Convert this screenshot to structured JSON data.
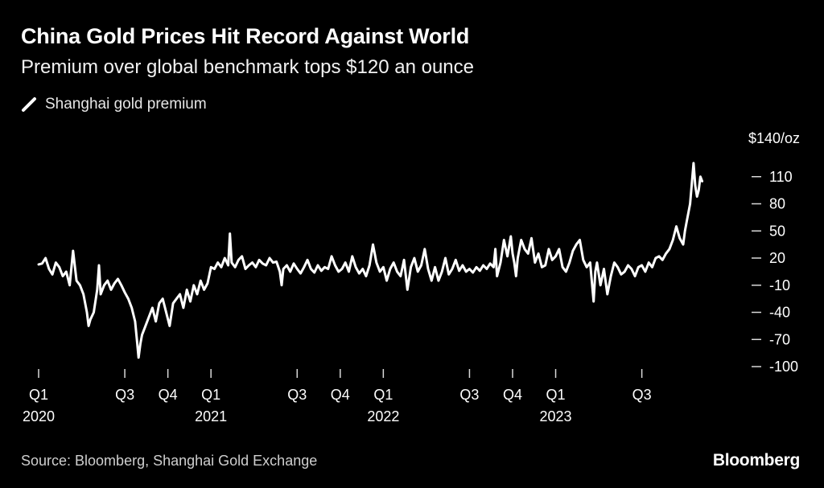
{
  "header": {
    "title": "China Gold Prices Hit Record Against World",
    "subtitle": "Premium over global benchmark tops $120 an ounce"
  },
  "legend": {
    "label": "Shanghai gold premium",
    "icon": "line-swatch-icon"
  },
  "footer": {
    "source": "Source: Bloomberg, Shanghai Gold Exchange",
    "brand": "Bloomberg"
  },
  "colors": {
    "background": "#000000",
    "line": "#ffffff",
    "text": "#ffffff",
    "muted": "#cfcfcf"
  },
  "chart_data": {
    "type": "line",
    "title": "China Gold Prices Hit Record Against World",
    "subtitle": "Premium over global benchmark tops $120 an ounce",
    "xlabel": "",
    "ylabel": "$/oz",
    "ylim": [
      -100,
      140
    ],
    "xlim": [
      2020.0,
      2023.95
    ],
    "y_unit_label": "$140/oz",
    "y_ticks": [
      110,
      80,
      50,
      20,
      -10,
      -40,
      -70,
      -100
    ],
    "x_ticks": [
      {
        "x": 2020.0,
        "label": "Q1",
        "year": "2020"
      },
      {
        "x": 2020.5,
        "label": "Q3",
        "year": ""
      },
      {
        "x": 2020.75,
        "label": "Q4",
        "year": ""
      },
      {
        "x": 2021.0,
        "label": "Q1",
        "year": "2021"
      },
      {
        "x": 2021.5,
        "label": "Q3",
        "year": ""
      },
      {
        "x": 2021.75,
        "label": "Q4",
        "year": ""
      },
      {
        "x": 2022.0,
        "label": "Q1",
        "year": "2022"
      },
      {
        "x": 2022.5,
        "label": "Q3",
        "year": ""
      },
      {
        "x": 2022.75,
        "label": "Q4",
        "year": ""
      },
      {
        "x": 2023.0,
        "label": "Q1",
        "year": "2023"
      },
      {
        "x": 2023.5,
        "label": "Q3",
        "year": ""
      }
    ],
    "series": [
      {
        "name": "Shanghai gold premium",
        "points": [
          [
            2020.0,
            13
          ],
          [
            2020.02,
            14
          ],
          [
            2020.04,
            20
          ],
          [
            2020.06,
            8
          ],
          [
            2020.08,
            2
          ],
          [
            2020.1,
            15
          ],
          [
            2020.12,
            10
          ],
          [
            2020.14,
            0
          ],
          [
            2020.16,
            5
          ],
          [
            2020.18,
            -10
          ],
          [
            2020.2,
            28
          ],
          [
            2020.22,
            -5
          ],
          [
            2020.24,
            -10
          ],
          [
            2020.26,
            -20
          ],
          [
            2020.28,
            -40
          ],
          [
            2020.29,
            -55
          ],
          [
            2020.3,
            -48
          ],
          [
            2020.32,
            -40
          ],
          [
            2020.34,
            -15
          ],
          [
            2020.35,
            12
          ],
          [
            2020.36,
            -20
          ],
          [
            2020.38,
            -10
          ],
          [
            2020.4,
            -5
          ],
          [
            2020.42,
            -15
          ],
          [
            2020.44,
            -8
          ],
          [
            2020.46,
            -3
          ],
          [
            2020.48,
            -10
          ],
          [
            2020.5,
            -18
          ],
          [
            2020.52,
            -25
          ],
          [
            2020.54,
            -35
          ],
          [
            2020.56,
            -50
          ],
          [
            2020.57,
            -70
          ],
          [
            2020.58,
            -90
          ],
          [
            2020.59,
            -75
          ],
          [
            2020.6,
            -65
          ],
          [
            2020.62,
            -55
          ],
          [
            2020.64,
            -45
          ],
          [
            2020.66,
            -35
          ],
          [
            2020.68,
            -50
          ],
          [
            2020.7,
            -30
          ],
          [
            2020.72,
            -25
          ],
          [
            2020.74,
            -40
          ],
          [
            2020.76,
            -55
          ],
          [
            2020.78,
            -30
          ],
          [
            2020.8,
            -25
          ],
          [
            2020.82,
            -20
          ],
          [
            2020.84,
            -35
          ],
          [
            2020.86,
            -15
          ],
          [
            2020.88,
            -28
          ],
          [
            2020.9,
            -10
          ],
          [
            2020.92,
            -20
          ],
          [
            2020.94,
            -5
          ],
          [
            2020.96,
            -15
          ],
          [
            2020.98,
            -8
          ],
          [
            2021.0,
            10
          ],
          [
            2021.02,
            8
          ],
          [
            2021.04,
            15
          ],
          [
            2021.06,
            10
          ],
          [
            2021.08,
            20
          ],
          [
            2021.1,
            12
          ],
          [
            2021.11,
            47
          ],
          [
            2021.12,
            15
          ],
          [
            2021.14,
            10
          ],
          [
            2021.16,
            18
          ],
          [
            2021.18,
            22
          ],
          [
            2021.2,
            8
          ],
          [
            2021.22,
            12
          ],
          [
            2021.24,
            15
          ],
          [
            2021.26,
            10
          ],
          [
            2021.28,
            18
          ],
          [
            2021.3,
            14
          ],
          [
            2021.32,
            12
          ],
          [
            2021.34,
            20
          ],
          [
            2021.36,
            15
          ],
          [
            2021.38,
            16
          ],
          [
            2021.4,
            5
          ],
          [
            2021.41,
            -10
          ],
          [
            2021.42,
            8
          ],
          [
            2021.44,
            12
          ],
          [
            2021.46,
            5
          ],
          [
            2021.48,
            14
          ],
          [
            2021.5,
            8
          ],
          [
            2021.52,
            3
          ],
          [
            2021.54,
            10
          ],
          [
            2021.56,
            18
          ],
          [
            2021.58,
            8
          ],
          [
            2021.6,
            4
          ],
          [
            2021.62,
            12
          ],
          [
            2021.64,
            6
          ],
          [
            2021.66,
            10
          ],
          [
            2021.68,
            8
          ],
          [
            2021.7,
            22
          ],
          [
            2021.72,
            12
          ],
          [
            2021.74,
            5
          ],
          [
            2021.76,
            8
          ],
          [
            2021.78,
            15
          ],
          [
            2021.8,
            5
          ],
          [
            2021.82,
            22
          ],
          [
            2021.84,
            10
          ],
          [
            2021.86,
            3
          ],
          [
            2021.88,
            8
          ],
          [
            2021.9,
            0
          ],
          [
            2021.92,
            12
          ],
          [
            2021.94,
            35
          ],
          [
            2021.96,
            15
          ],
          [
            2021.98,
            5
          ],
          [
            2022.0,
            10
          ],
          [
            2022.02,
            -5
          ],
          [
            2022.04,
            8
          ],
          [
            2022.06,
            15
          ],
          [
            2022.08,
            5
          ],
          [
            2022.1,
            0
          ],
          [
            2022.12,
            18
          ],
          [
            2022.14,
            -15
          ],
          [
            2022.16,
            10
          ],
          [
            2022.18,
            20
          ],
          [
            2022.2,
            5
          ],
          [
            2022.22,
            12
          ],
          [
            2022.24,
            30
          ],
          [
            2022.26,
            8
          ],
          [
            2022.28,
            -5
          ],
          [
            2022.3,
            10
          ],
          [
            2022.32,
            -5
          ],
          [
            2022.34,
            5
          ],
          [
            2022.36,
            20
          ],
          [
            2022.38,
            2
          ],
          [
            2022.4,
            8
          ],
          [
            2022.42,
            18
          ],
          [
            2022.44,
            6
          ],
          [
            2022.46,
            12
          ],
          [
            2022.48,
            5
          ],
          [
            2022.5,
            8
          ],
          [
            2022.52,
            4
          ],
          [
            2022.54,
            10
          ],
          [
            2022.56,
            6
          ],
          [
            2022.58,
            12
          ],
          [
            2022.6,
            8
          ],
          [
            2022.62,
            14
          ],
          [
            2022.64,
            10
          ],
          [
            2022.65,
            30
          ],
          [
            2022.66,
            0
          ],
          [
            2022.68,
            15
          ],
          [
            2022.7,
            40
          ],
          [
            2022.72,
            22
          ],
          [
            2022.74,
            44
          ],
          [
            2022.75,
            25
          ],
          [
            2022.76,
            15
          ],
          [
            2022.77,
            0
          ],
          [
            2022.78,
            20
          ],
          [
            2022.8,
            40
          ],
          [
            2022.82,
            30
          ],
          [
            2022.84,
            25
          ],
          [
            2022.86,
            42
          ],
          [
            2022.88,
            15
          ],
          [
            2022.9,
            25
          ],
          [
            2022.92,
            10
          ],
          [
            2022.94,
            12
          ],
          [
            2022.96,
            30
          ],
          [
            2022.98,
            18
          ],
          [
            2023.0,
            22
          ],
          [
            2023.02,
            30
          ],
          [
            2023.04,
            10
          ],
          [
            2023.06,
            5
          ],
          [
            2023.08,
            15
          ],
          [
            2023.1,
            28
          ],
          [
            2023.12,
            35
          ],
          [
            2023.14,
            40
          ],
          [
            2023.16,
            18
          ],
          [
            2023.18,
            10
          ],
          [
            2023.2,
            15
          ],
          [
            2023.22,
            -28
          ],
          [
            2023.23,
            5
          ],
          [
            2023.24,
            15
          ],
          [
            2023.26,
            -10
          ],
          [
            2023.28,
            8
          ],
          [
            2023.3,
            -20
          ],
          [
            2023.32,
            0
          ],
          [
            2023.34,
            15
          ],
          [
            2023.36,
            10
          ],
          [
            2023.38,
            2
          ],
          [
            2023.4,
            5
          ],
          [
            2023.42,
            12
          ],
          [
            2023.44,
            8
          ],
          [
            2023.46,
            0
          ],
          [
            2023.48,
            10
          ],
          [
            2023.5,
            12
          ],
          [
            2023.52,
            5
          ],
          [
            2023.54,
            15
          ],
          [
            2023.56,
            10
          ],
          [
            2023.58,
            20
          ],
          [
            2023.6,
            22
          ],
          [
            2023.62,
            18
          ],
          [
            2023.64,
            25
          ],
          [
            2023.66,
            30
          ],
          [
            2023.68,
            40
          ],
          [
            2023.7,
            55
          ],
          [
            2023.72,
            42
          ],
          [
            2023.74,
            35
          ],
          [
            2023.75,
            50
          ],
          [
            2023.76,
            60
          ],
          [
            2023.78,
            80
          ],
          [
            2023.8,
            125
          ],
          [
            2023.81,
            100
          ],
          [
            2023.82,
            88
          ],
          [
            2023.83,
            95
          ],
          [
            2023.84,
            110
          ],
          [
            2023.85,
            105
          ]
        ]
      }
    ]
  }
}
